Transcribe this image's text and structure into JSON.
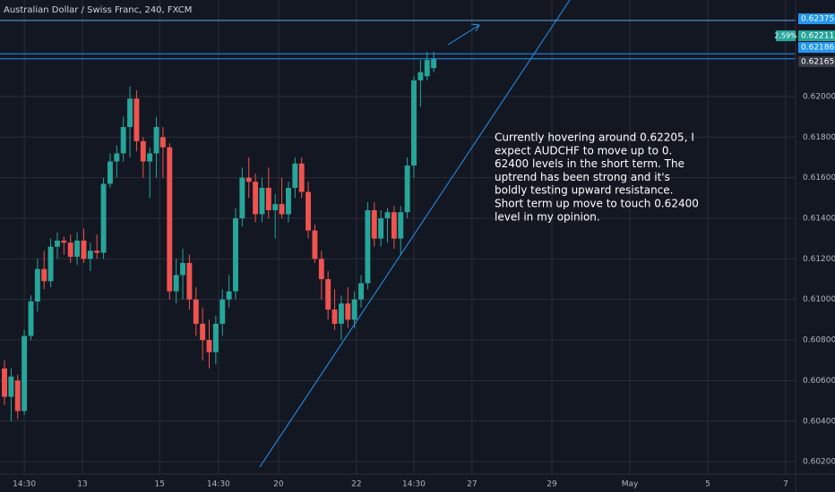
{
  "chart_data": {
    "type": "candlestick",
    "title": "Australian Dollar / Swiss Franc, 240, FXCM",
    "up_color": "#26a69a",
    "down_color": "#ef5350",
    "x": [
      0,
      1,
      2,
      3,
      4,
      5,
      6,
      7,
      8,
      9,
      10,
      11,
      12,
      13,
      14,
      15,
      16,
      17,
      18,
      19,
      20,
      21,
      22,
      23,
      24,
      25,
      26,
      27,
      28,
      29,
      30,
      31,
      32,
      33,
      34,
      35,
      36,
      37,
      38,
      39,
      40,
      41,
      42,
      43,
      44,
      45,
      46,
      47,
      48,
      49,
      50,
      51,
      52,
      53,
      54,
      55,
      56,
      57,
      58,
      59,
      60,
      61,
      62,
      63,
      64,
      65
    ],
    "open": [
      0.6066,
      0.6052,
      0.606,
      0.6045,
      0.6082,
      0.6099,
      0.6115,
      0.6109,
      0.6126,
      0.6129,
      0.6128,
      0.6121,
      0.6129,
      0.612,
      0.6124,
      0.6123,
      0.6157,
      0.6168,
      0.6172,
      0.6185,
      0.6199,
      0.6178,
      0.6168,
      0.6172,
      0.618,
      0.6175,
      0.6104,
      0.6112,
      0.6118,
      0.61,
      0.6088,
      0.608,
      0.6074,
      0.6088,
      0.61,
      0.6104,
      0.614,
      0.616,
      0.6158,
      0.6142,
      0.6155,
      0.6144,
      0.6147,
      0.6142,
      0.6155,
      0.6167,
      0.6153,
      0.6134,
      0.612,
      0.611,
      0.6095,
      0.6088,
      0.6098,
      0.609,
      0.61,
      0.6108,
      0.6144,
      0.613,
      0.614,
      0.6143,
      0.613,
      0.6143,
      0.6166,
      0.6208,
      0.621,
      0.6214
    ],
    "high": [
      0.607,
      0.6066,
      0.6063,
      0.6085,
      0.6102,
      0.612,
      0.6124,
      0.613,
      0.6133,
      0.6131,
      0.6132,
      0.6133,
      0.6135,
      0.6128,
      0.6132,
      0.616,
      0.6172,
      0.6176,
      0.619,
      0.6205,
      0.6203,
      0.618,
      0.6175,
      0.619,
      0.6185,
      0.6177,
      0.612,
      0.6125,
      0.6122,
      0.6106,
      0.6096,
      0.609,
      0.6092,
      0.6105,
      0.6112,
      0.6145,
      0.6165,
      0.617,
      0.6162,
      0.616,
      0.6165,
      0.6152,
      0.616,
      0.6158,
      0.617,
      0.617,
      0.6158,
      0.6137,
      0.6124,
      0.6114,
      0.6105,
      0.6102,
      0.6106,
      0.6104,
      0.6112,
      0.6148,
      0.6148,
      0.6144,
      0.6145,
      0.6146,
      0.6146,
      0.617,
      0.621,
      0.6218,
      0.6222,
      0.6222
    ],
    "low": [
      0.6048,
      0.604,
      0.6041,
      0.6043,
      0.608,
      0.6094,
      0.6105,
      0.6106,
      0.612,
      0.6122,
      0.6118,
      0.6117,
      0.6118,
      0.6114,
      0.612,
      0.612,
      0.6155,
      0.616,
      0.6168,
      0.617,
      0.6173,
      0.616,
      0.615,
      0.616,
      0.616,
      0.61,
      0.6098,
      0.61,
      0.6095,
      0.6082,
      0.607,
      0.6066,
      0.6068,
      0.6082,
      0.6096,
      0.61,
      0.6136,
      0.615,
      0.6138,
      0.6138,
      0.614,
      0.613,
      0.614,
      0.6138,
      0.615,
      0.615,
      0.613,
      0.6118,
      0.61,
      0.609,
      0.6085,
      0.608,
      0.6086,
      0.6086,
      0.6096,
      0.6105,
      0.6126,
      0.6126,
      0.6128,
      0.6125,
      0.6122,
      0.614,
      0.616,
      0.6195,
      0.6208,
      0.6212
    ],
    "close": [
      0.6052,
      0.6062,
      0.6045,
      0.6082,
      0.6099,
      0.6115,
      0.6109,
      0.6126,
      0.6129,
      0.6128,
      0.6121,
      0.6129,
      0.612,
      0.6124,
      0.6123,
      0.6157,
      0.6168,
      0.6172,
      0.6185,
      0.6199,
      0.6178,
      0.6168,
      0.6172,
      0.6185,
      0.6175,
      0.6104,
      0.6112,
      0.6118,
      0.61,
      0.6088,
      0.608,
      0.6074,
      0.6088,
      0.61,
      0.6104,
      0.614,
      0.616,
      0.6158,
      0.6142,
      0.6155,
      0.6144,
      0.6147,
      0.6142,
      0.6155,
      0.6167,
      0.6153,
      0.6134,
      0.612,
      0.611,
      0.6095,
      0.6088,
      0.6098,
      0.609,
      0.61,
      0.6108,
      0.6144,
      0.613,
      0.614,
      0.6143,
      0.613,
      0.6143,
      0.6166,
      0.6208,
      0.6212,
      0.6218,
      0.62186
    ],
    "xlim": [
      -0.68,
      119.8
    ],
    "ylim": [
      0.60139,
      0.62476
    ],
    "xticks": [
      {
        "value": 3.0,
        "label": "14:30"
      },
      {
        "value": 11.8,
        "label": "13"
      },
      {
        "value": 23.5,
        "label": "15"
      },
      {
        "value": 32.4,
        "label": "14:30"
      },
      {
        "value": 41.5,
        "label": "20"
      },
      {
        "value": 53.3,
        "label": "22"
      },
      {
        "value": 62.0,
        "label": "14:30"
      },
      {
        "value": 70.8,
        "label": "27"
      },
      {
        "value": 82.9,
        "label": "29"
      },
      {
        "value": 94.7,
        "label": "May"
      },
      {
        "value": 106.5,
        "label": "5"
      },
      {
        "value": 118.3,
        "label": "7"
      }
    ],
    "yticks": [
      {
        "value": 0.602,
        "label": "0.60200"
      },
      {
        "value": 0.604,
        "label": "0.60400"
      },
      {
        "value": 0.606,
        "label": "0.60600"
      },
      {
        "value": 0.608,
        "label": "0.60800"
      },
      {
        "value": 0.61,
        "label": "0.61000"
      },
      {
        "value": 0.612,
        "label": "0.61200"
      },
      {
        "value": 0.614,
        "label": "0.61400"
      },
      {
        "value": 0.616,
        "label": "0.61600"
      },
      {
        "value": 0.618,
        "label": "0.61800"
      },
      {
        "value": 0.62,
        "label": "0.62000"
      }
    ],
    "grid": true,
    "price_lines": [
      {
        "value": 0.62375,
        "color": "#2196f3",
        "line_color": "#5aa9e6"
      },
      {
        "value": 0.62211,
        "color": "#26a69a",
        "change": "2.59%",
        "line_color": "#2196f3"
      },
      {
        "value": 0.62186,
        "color": "#2196f3",
        "line_color": "#2196f3"
      },
      {
        "value": 0.62165,
        "color": "#363a45"
      }
    ],
    "annotation": {
      "lines": [
        "Currently hovering around 0.62205, I",
        "expect AUDCHF to move up to 0.",
        "62400 levels in the short term. The",
        "uptrend has been strong and it's",
        "boldly testing upward resistance.",
        "Short term up move to touch 0.62400",
        "level in my opinion."
      ]
    }
  }
}
